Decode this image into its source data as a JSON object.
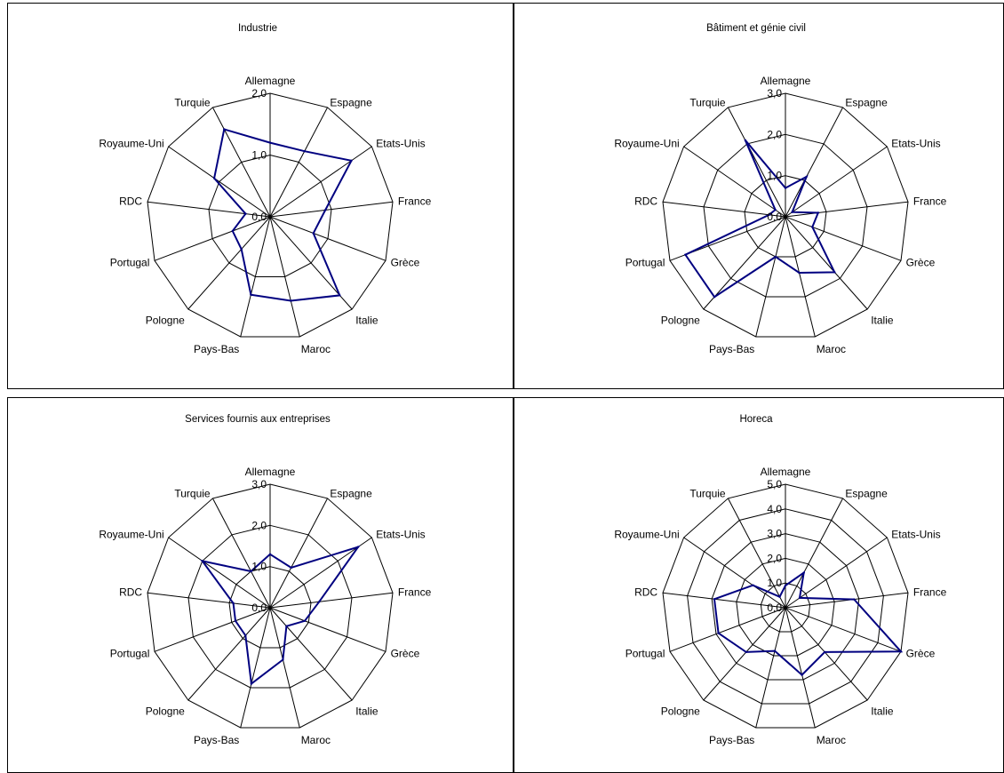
{
  "colors": {
    "series": "#000080",
    "grid": "#000000",
    "background": "#ffffff"
  },
  "chart_data": [
    {
      "type": "radar",
      "title": "Industrie",
      "categories": [
        "Allemagne",
        "Espagne",
        "Etats-Unis",
        "France",
        "Grèce",
        "Italie",
        "Maroc",
        "Pays-Bas",
        "Pologne",
        "Portugal",
        "RDC",
        "Royaume-Uni",
        "Turquie"
      ],
      "rlim": [
        0,
        2
      ],
      "ticks": [
        {
          "value": 0,
          "label": "0,0"
        },
        {
          "value": 1,
          "label": "1,0"
        },
        {
          "value": 2,
          "label": "2,0"
        }
      ],
      "series": [
        {
          "values": [
            1.2,
            1.2,
            1.6,
            0.9,
            0.75,
            1.7,
            1.4,
            1.3,
            0.7,
            0.65,
            0.4,
            1.1,
            1.6
          ]
        }
      ]
    },
    {
      "type": "radar",
      "title": "Bâtiment et génie civil",
      "categories": [
        "Allemagne",
        "Espagne",
        "Etats-Unis",
        "France",
        "Grèce",
        "Italie",
        "Maroc",
        "Pays-Bas",
        "Pologne",
        "Portugal",
        "RDC",
        "Royaume-Uni",
        "Turquie"
      ],
      "rlim": [
        0,
        3
      ],
      "ticks": [
        {
          "value": 0,
          "label": "0,0"
        },
        {
          "value": 1,
          "label": "1,0"
        },
        {
          "value": 2,
          "label": "2,0"
        },
        {
          "value": 3,
          "label": "3,0"
        }
      ],
      "series": [
        {
          "values": [
            0.7,
            1.1,
            0.2,
            0.8,
            0.7,
            1.8,
            1.4,
            1.0,
            2.6,
            2.6,
            0.4,
            0.3,
            2.1
          ]
        }
      ]
    },
    {
      "type": "radar",
      "title": "Services fournis aux entreprises",
      "categories": [
        "Allemagne",
        "Espagne",
        "Etats-Unis",
        "France",
        "Grèce",
        "Italie",
        "Maroc",
        "Pays-Bas",
        "Pologne",
        "Portugal",
        "RDC",
        "Royaume-Uni",
        "Turquie"
      ],
      "rlim": [
        0,
        3
      ],
      "ticks": [
        {
          "value": 0,
          "label": "0,0"
        },
        {
          "value": 1,
          "label": "1,0"
        },
        {
          "value": 2,
          "label": "2,0"
        },
        {
          "value": 3,
          "label": "3,0"
        }
      ],
      "series": [
        {
          "values": [
            1.3,
            1.1,
            2.6,
            1.2,
            0.9,
            0.6,
            1.3,
            1.9,
            0.9,
            0.9,
            0.9,
            2.0,
            1.0
          ]
        }
      ]
    },
    {
      "type": "radar",
      "title": "Horeca",
      "categories": [
        "Allemagne",
        "Espagne",
        "Etats-Unis",
        "France",
        "Grèce",
        "Italie",
        "Maroc",
        "Pays-Bas",
        "Pologne",
        "Portugal",
        "RDC",
        "Royaume-Uni",
        "Turquie"
      ],
      "rlim": [
        0,
        5
      ],
      "ticks": [
        {
          "value": 0,
          "label": "0,0"
        },
        {
          "value": 1,
          "label": "1,0"
        },
        {
          "value": 2,
          "label": "2,0"
        },
        {
          "value": 3,
          "label": "3,0"
        },
        {
          "value": 4,
          "label": "4,0"
        },
        {
          "value": 5,
          "label": "5,0"
        }
      ],
      "series": [
        {
          "values": [
            0.9,
            1.6,
            0.7,
            2.8,
            5.0,
            2.4,
            2.8,
            1.8,
            2.4,
            2.9,
            2.9,
            1.6,
            0.5
          ]
        }
      ]
    }
  ]
}
